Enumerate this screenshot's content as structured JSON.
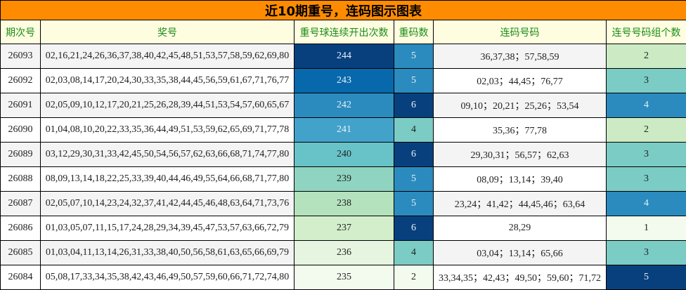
{
  "title": "近10期重号，连码图示图表",
  "headers": [
    "期次号",
    "奖号",
    "重号球连续开出次数",
    "重码数",
    "连码号码",
    "连号号码组个数"
  ],
  "rows": [
    {
      "period": "26093",
      "numbers": "02,16,21,24,26,36,37,38,40,42,45,48,51,53,57,58,59,62,69,80",
      "repeat_streak": "244",
      "repeat_count": "5",
      "consecutive": "36,37,38；57,58,59",
      "consecutive_groups": "2",
      "colors": {
        "streak": "#08407e",
        "count": "#2b8bbe",
        "groups": "#ccebc5"
      }
    },
    {
      "period": "26092",
      "numbers": "02,03,08,14,17,20,24,30,33,35,38,44,45,56,59,61,67,71,76,77",
      "repeat_streak": "243",
      "repeat_count": "5",
      "consecutive": "02,03；44,45；76,77",
      "consecutive_groups": "3",
      "colors": {
        "streak": "#0868ac",
        "count": "#2b8bbe",
        "groups": "#7bccc4"
      }
    },
    {
      "period": "26091",
      "numbers": "02,05,09,10,12,17,20,21,25,26,28,39,44,51,53,54,57,60,65,67",
      "repeat_streak": "242",
      "repeat_count": "6",
      "consecutive": "09,10；20,21；25,26；53,54",
      "consecutive_groups": "4",
      "colors": {
        "streak": "#2b8bbe",
        "count": "#08407e",
        "groups": "#2b8bbe"
      }
    },
    {
      "period": "26090",
      "numbers": "01,04,08,10,20,22,33,35,36,44,49,51,53,59,62,65,69,71,77,78",
      "repeat_streak": "241",
      "repeat_count": "4",
      "consecutive": "35,36；77,78",
      "consecutive_groups": "2",
      "colors": {
        "streak": "#43a2ca",
        "count": "#7bccc4",
        "groups": "#ccebc5"
      }
    },
    {
      "period": "26089",
      "numbers": "03,12,29,30,31,33,42,45,50,54,56,57,62,63,66,68,71,74,77,80",
      "repeat_streak": "240",
      "repeat_count": "6",
      "consecutive": "29,30,31；56,57；62,63",
      "consecutive_groups": "3",
      "colors": {
        "streak": "#68c3c8",
        "count": "#08407e",
        "groups": "#7bccc4"
      }
    },
    {
      "period": "26088",
      "numbers": "08,09,13,14,18,22,25,33,39,40,44,46,49,55,64,66,68,71,77,80",
      "repeat_streak": "239",
      "repeat_count": "5",
      "consecutive": "08,09；13,14；39,40",
      "consecutive_groups": "3",
      "colors": {
        "streak": "#8fd4c0",
        "count": "#2b8bbe",
        "groups": "#7bccc4"
      }
    },
    {
      "period": "26087",
      "numbers": "02,05,07,10,14,23,24,32,37,41,42,44,45,46,48,63,64,71,73,76",
      "repeat_streak": "238",
      "repeat_count": "5",
      "consecutive": "23,24；41,42；44,45,46；63,64",
      "consecutive_groups": "4",
      "colors": {
        "streak": "#b4e2bd",
        "count": "#2b8bbe",
        "groups": "#2b8bbe"
      }
    },
    {
      "period": "26086",
      "numbers": "01,03,05,07,11,15,17,24,28,29,34,39,45,47,53,57,63,66,72,79",
      "repeat_streak": "237",
      "repeat_count": "6",
      "consecutive": "28,29",
      "consecutive_groups": "1",
      "colors": {
        "streak": "#d2eecb",
        "count": "#08407e",
        "groups": "#f3faee"
      }
    },
    {
      "period": "26085",
      "numbers": "01,03,04,11,13,14,26,31,33,38,40,50,56,58,61,63,65,66,69,79",
      "repeat_streak": "236",
      "repeat_count": "4",
      "consecutive": "03,04；13,14；65,66",
      "consecutive_groups": "3",
      "colors": {
        "streak": "#e5f5e0",
        "count": "#7bccc4",
        "groups": "#7bccc4"
      }
    },
    {
      "period": "26084",
      "numbers": "05,08,17,33,34,35,38,42,43,46,49,50,57,59,60,66,71,72,74,80",
      "repeat_streak": "235",
      "repeat_count": "2",
      "consecutive": "33,34,35；42,43；49,50；59,60；71,72",
      "consecutive_groups": "5",
      "colors": {
        "streak": "#f3faee",
        "count": "#f3faee",
        "groups": "#08407e"
      }
    }
  ],
  "colors": {
    "title_bg": "#ff8c00",
    "header_bg": "#fffde0",
    "header_text": "#1a8c1a"
  }
}
